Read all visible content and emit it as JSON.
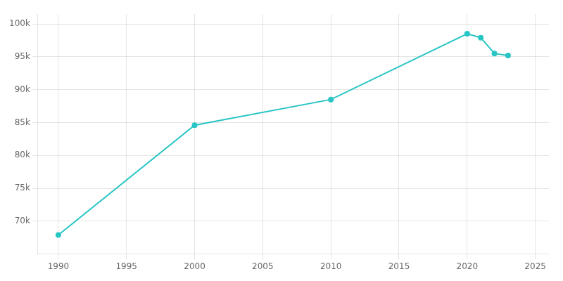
{
  "chart_data": {
    "type": "line",
    "x": [
      1990,
      2000,
      2010,
      2020,
      2021,
      2022,
      2023
    ],
    "values": [
      67900,
      84600,
      88500,
      98500,
      97900,
      95500,
      95200
    ],
    "color": "#29C5C5",
    "marker": "circle",
    "xlim": [
      1988.5,
      2026
    ],
    "xticks": [
      1990,
      1995,
      2000,
      2005,
      2010,
      2015,
      2020,
      2025
    ],
    "ylim": [
      65000,
      101500
    ],
    "yticks": [
      {
        "value": 70000,
        "label": "70k"
      },
      {
        "value": 75000,
        "label": "75k"
      },
      {
        "value": 80000,
        "label": "80k"
      },
      {
        "value": 85000,
        "label": "85k"
      },
      {
        "value": 90000,
        "label": "90k"
      },
      {
        "value": 95000,
        "label": "95k"
      },
      {
        "value": 100000,
        "label": "100k"
      }
    ],
    "grid": true
  }
}
